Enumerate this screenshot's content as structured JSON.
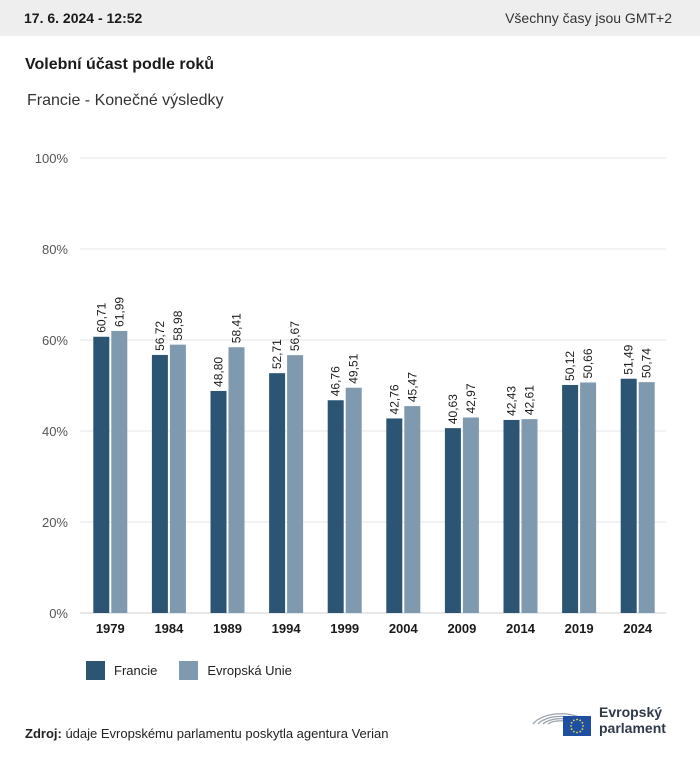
{
  "header": {
    "date": "17. 6. 2024 - 12:52",
    "timezone": "Všechny časy jsou GMT+2"
  },
  "chart": {
    "title": "Volební účast podle roků",
    "subtitle": "Francie - Konečné výsledky"
  },
  "chart_data": {
    "type": "bar",
    "title": "Volební účast podle roků",
    "subtitle": "Francie - Konečné výsledky",
    "xlabel": "",
    "ylabel": "",
    "ylim": [
      0,
      100
    ],
    "yticks": [
      "0%",
      "20%",
      "40%",
      "60%",
      "80%",
      "100%"
    ],
    "ytick_values": [
      0,
      20,
      40,
      60,
      80,
      100
    ],
    "grid": true,
    "legend_position": "bottom-left",
    "categories": [
      "1979",
      "1984",
      "1989",
      "1994",
      "1999",
      "2004",
      "2009",
      "2014",
      "2019",
      "2024"
    ],
    "series": [
      {
        "name": "Francie",
        "color": "#2c5573",
        "values": [
          60.71,
          56.72,
          48.8,
          52.71,
          46.76,
          42.76,
          40.63,
          42.43,
          50.12,
          51.49
        ],
        "labels": [
          "60,71",
          "56,72",
          "48,80",
          "52,71",
          "46,76",
          "42,76",
          "40,63",
          "42,43",
          "50,12",
          "51,49"
        ]
      },
      {
        "name": "Evropská Unie",
        "color": "#7f99ae",
        "values": [
          61.99,
          58.98,
          58.41,
          56.67,
          49.51,
          45.47,
          42.97,
          42.61,
          50.66,
          50.74
        ],
        "labels": [
          "61,99",
          "58,98",
          "58,41",
          "56,67",
          "49,51",
          "45,47",
          "42,97",
          "42,61",
          "50,66",
          "50,74"
        ]
      }
    ]
  },
  "legend": {
    "items": [
      {
        "label": "Francie",
        "color": "#2c5573"
      },
      {
        "label": "Evropská Unie",
        "color": "#7f99ae"
      }
    ]
  },
  "footer": {
    "source_label": "Zdroj:",
    "source_text": " údaje Evropskému parlamentu poskytla agentura Verian",
    "logo_line1": "Evropský",
    "logo_line2": "parlament"
  }
}
